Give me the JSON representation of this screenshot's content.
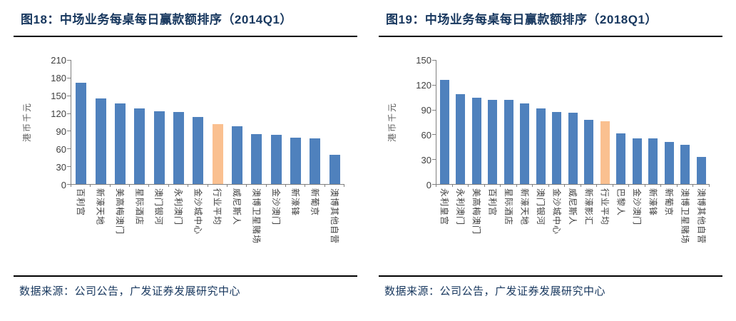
{
  "panels": [
    {
      "source": "数据来源：公司公告，广发证券发展研究中心"
    },
    {
      "source": "数据来源：公司公告，广发证券发展研究中心"
    }
  ],
  "colors": {
    "title_navy": "#17375E",
    "bar_blue": "#4F81BD",
    "highlight_orange": "#FAC090",
    "axis_gray": "#808080",
    "rule_black": "#000000"
  },
  "chart_data": [
    {
      "type": "bar",
      "title": "图18：中场业务每桌每日赢款额排序（2014Q1）",
      "ylabel": "港币千元",
      "xlabel": "",
      "ylim": [
        0,
        210
      ],
      "ytick_interval": 30,
      "grid": false,
      "legend": false,
      "categories": [
        "百利宫",
        "新濠天地",
        "美高梅澳门",
        "星际酒店",
        "澳门银河",
        "永利澳门",
        "金沙城中心",
        "行业平均",
        "威尼斯人",
        "澳博卫星赌场",
        "金沙澳门",
        "新濠锋",
        "新葡京",
        "澳博其他自营"
      ],
      "values": [
        172,
        145,
        136,
        128,
        123,
        122,
        113,
        102,
        98,
        85,
        83,
        78,
        77,
        50
      ],
      "highlight_category": "行业平均",
      "bar_color": "#4F81BD",
      "highlight_color": "#FAC090"
    },
    {
      "type": "bar",
      "title": "图19：中场业务每桌每日赢款额排序（2018Q1）",
      "ylabel": "港币千元",
      "xlabel": "",
      "ylim": [
        0,
        150
      ],
      "ytick_interval": 30,
      "grid": false,
      "legend": false,
      "categories": [
        "永利皇宫",
        "永利澳门",
        "美高梅澳门",
        "百利宫",
        "星际酒店",
        "新濠天地",
        "澳门银河",
        "金沙城中心",
        "威尼斯人",
        "新濠影汇",
        "行业平均",
        "巴黎人",
        "金沙澳门",
        "新濠锋",
        "新葡京",
        "澳博卫星赌场",
        "澳博其他自营"
      ],
      "values": [
        126,
        109,
        104,
        102,
        102,
        97,
        91,
        87,
        86,
        78,
        76,
        61,
        55,
        55,
        51,
        47,
        33
      ],
      "highlight_category": "行业平均",
      "bar_color": "#4F81BD",
      "highlight_color": "#FAC090"
    }
  ]
}
